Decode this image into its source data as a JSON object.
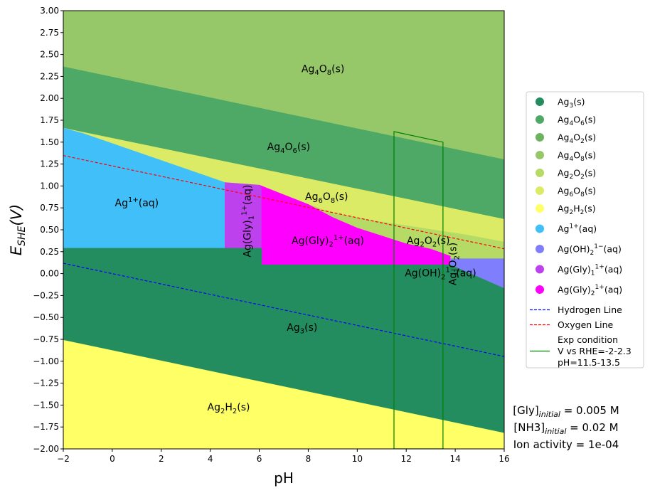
{
  "chart_data": {
    "type": "area",
    "xlabel": "pH",
    "ylabel": "E_SHE(V)",
    "xlim": [
      -2,
      16
    ],
    "ylim": [
      -2,
      3
    ],
    "xticks": [
      -2,
      0,
      2,
      4,
      6,
      8,
      10,
      12,
      14,
      16
    ],
    "yticks": [
      -2.0,
      -1.75,
      -1.5,
      -1.25,
      -1.0,
      -0.75,
      -0.5,
      -0.25,
      0.0,
      0.25,
      0.5,
      0.75,
      1.0,
      1.25,
      1.5,
      1.75,
      2.0,
      2.25,
      2.5,
      2.75,
      3.0
    ],
    "regions": [
      {
        "species": "Ag4O8(s)",
        "color": "#96c86a",
        "polygon": [
          [
            -2,
            3.0
          ],
          [
            16,
            3.0
          ],
          [
            16,
            1.3
          ],
          [
            -2,
            2.36
          ]
        ]
      },
      {
        "species": "Ag4O6(s)",
        "color": "#4ea966",
        "polygon": [
          [
            -2,
            2.36
          ],
          [
            16,
            1.3
          ],
          [
            16,
            0.62
          ],
          [
            -2,
            1.66
          ]
        ]
      },
      {
        "species": "Ag6O8(s)",
        "color": "#dbeb66",
        "polygon": [
          [
            -2,
            1.66
          ],
          [
            16,
            0.62
          ],
          [
            16,
            0.36
          ],
          [
            14.5,
            0.44
          ],
          [
            11.0,
            0.59
          ],
          [
            9.0,
            0.69
          ],
          [
            8.0,
            0.79
          ],
          [
            6.0,
            1.01
          ],
          [
            4.6,
            1.04
          ],
          [
            -1.2,
            1.6
          ]
        ]
      },
      {
        "species": "Ag2O2(s)",
        "color": "#b5db66",
        "polygon": [
          [
            8.0,
            0.79
          ],
          [
            9.0,
            0.69
          ],
          [
            11.0,
            0.59
          ],
          [
            14.5,
            0.44
          ],
          [
            16,
            0.36
          ],
          [
            16,
            0.17
          ],
          [
            13.8,
            0.17
          ],
          [
            13.8,
            0.2
          ],
          [
            13.0,
            0.28
          ],
          [
            12.0,
            0.34
          ],
          [
            10.0,
            0.52
          ],
          [
            9.0,
            0.64
          ]
        ]
      },
      {
        "species": "Ag1+(aq)",
        "color": "#40bff8",
        "polygon": [
          [
            -2,
            1.66
          ],
          [
            -1.2,
            1.6
          ],
          [
            4.6,
            1.04
          ],
          [
            4.6,
            0.29
          ],
          [
            -2,
            0.29
          ]
        ]
      },
      {
        "species": "Ag(Gly)1 1+(aq)",
        "color": "#be41ee",
        "polygon": [
          [
            4.6,
            1.04
          ],
          [
            6.0,
            1.01
          ],
          [
            6.1,
            0.98
          ],
          [
            6.1,
            0.1
          ],
          [
            6.1,
            0.29
          ],
          [
            4.6,
            0.29
          ]
        ]
      },
      {
        "species": "Ag(Gly)2 1+(aq)",
        "color": "#fe00fe",
        "polygon": [
          [
            6.1,
            0.98
          ],
          [
            6.0,
            1.01
          ],
          [
            8.0,
            0.79
          ],
          [
            9.0,
            0.64
          ],
          [
            10.0,
            0.52
          ],
          [
            12.0,
            0.34
          ],
          [
            13.0,
            0.28
          ],
          [
            13.8,
            0.2
          ],
          [
            13.8,
            0.1
          ],
          [
            6.1,
            0.1
          ]
        ]
      },
      {
        "species": "Ag(OH)2 1-(aq)",
        "color": "#7f7ffe",
        "polygon": [
          [
            13.8,
            0.17
          ],
          [
            16,
            0.17
          ],
          [
            16,
            -0.17
          ],
          [
            13.8,
            0.1
          ]
        ]
      },
      {
        "species": "Ag3(s)",
        "color": "#238d60",
        "polygon": [
          [
            -2,
            0.29
          ],
          [
            4.6,
            0.29
          ],
          [
            6.1,
            0.29
          ],
          [
            6.1,
            0.1
          ],
          [
            13.8,
            0.1
          ],
          [
            16,
            -0.17
          ],
          [
            16,
            -1.82
          ],
          [
            -2,
            -0.76
          ]
        ]
      },
      {
        "species": "Ag2H2(s)",
        "color": "#ffff66",
        "polygon": [
          [
            -2,
            -0.76
          ],
          [
            16,
            -1.82
          ],
          [
            16,
            -2.0
          ],
          [
            -2,
            -2.0
          ]
        ]
      }
    ],
    "region_labels": [
      {
        "text": "Ag4O8(s)",
        "x": 8.6,
        "y": 2.34
      },
      {
        "text": "Ag4O6(s)",
        "x": 7.2,
        "y": 1.45
      },
      {
        "text": "Ag6O8(s)",
        "x": 8.75,
        "y": 0.88
      },
      {
        "text": "Ag1+(aq)",
        "x": 1.0,
        "y": 0.81
      },
      {
        "text": "Ag(Gly)1 1+(aq)",
        "x": 5.5,
        "y": 0.6,
        "rotate": -90
      },
      {
        "text": "Ag(Gly)2 1+(aq)",
        "x": 8.8,
        "y": 0.38
      },
      {
        "text": "Ag2O2(s)",
        "x": 12.9,
        "y": 0.38
      },
      {
        "text": "Ag(OH)2 1-(aq)",
        "x": 13.4,
        "y": 0.01
      },
      {
        "text": "Ag1O2(s)",
        "x": 13.9,
        "y": 0.11,
        "rotate": -90
      },
      {
        "text": "Ag3(s)",
        "x": 7.75,
        "y": -0.61
      },
      {
        "text": "Ag2H2(s)",
        "x": 4.75,
        "y": -1.52
      }
    ],
    "lines": [
      {
        "name": "Hydrogen Line",
        "color": "#0000ff",
        "dash": true,
        "x": [
          -2,
          16
        ],
        "y": [
          0.118,
          -0.946
        ]
      },
      {
        "name": "Oxygen Line",
        "color": "#ff0000",
        "dash": true,
        "x": [
          -2,
          16
        ],
        "y": [
          1.347,
          0.283
        ]
      }
    ],
    "exp_box": {
      "name": "Exp condition V vs RHE=-2-2.3 pH=11.5-13.5",
      "color": "#008000",
      "polygon": [
        [
          11.5,
          1.62
        ],
        [
          13.5,
          1.5
        ],
        [
          13.5,
          -2.0
        ],
        [
          11.5,
          -2.0
        ]
      ]
    },
    "legend": [
      {
        "label": "Ag3(s)",
        "base": "Ag",
        "sub": "3",
        "rest": "(s)",
        "color": "#238d60",
        "kind": "dot"
      },
      {
        "label": "Ag4O6(s)",
        "base": "Ag",
        "sub": "4",
        "mid": "O",
        "sub2": "6",
        "rest": "(s)",
        "color": "#4ea966",
        "kind": "dot"
      },
      {
        "label": "Ag4O2(s)",
        "base": "Ag",
        "sub": "4",
        "mid": "O",
        "sub2": "2",
        "rest": "(s)",
        "color": "#6bb35e",
        "kind": "dot"
      },
      {
        "label": "Ag4O8(s)",
        "base": "Ag",
        "sub": "4",
        "mid": "O",
        "sub2": "8",
        "rest": "(s)",
        "color": "#96c86a",
        "kind": "dot"
      },
      {
        "label": "Ag2O2(s)",
        "base": "Ag",
        "sub": "2",
        "mid": "O",
        "sub2": "2",
        "rest": "(s)",
        "color": "#b5db66",
        "kind": "dot"
      },
      {
        "label": "Ag6O8(s)",
        "base": "Ag",
        "sub": "6",
        "mid": "O",
        "sub2": "8",
        "rest": "(s)",
        "color": "#dbeb66",
        "kind": "dot"
      },
      {
        "label": "Ag2H2(s)",
        "base": "Ag",
        "sub": "2",
        "mid": "H",
        "sub2": "2",
        "rest": "(s)",
        "color": "#ffff66",
        "kind": "dot"
      },
      {
        "label": "Ag1+(aq)",
        "base": "Ag",
        "sup": "1+",
        "rest": "(aq)",
        "color": "#40bff8",
        "kind": "dot"
      },
      {
        "label": "Ag(OH)2 1-(aq)",
        "base": "Ag(OH)",
        "sub": "2",
        "sup": "1−",
        "rest": "(aq)",
        "color": "#7f7ffe",
        "kind": "dot"
      },
      {
        "label": "Ag(Gly)1 1+(aq)",
        "base": "Ag(Gly)",
        "sub": "1",
        "sup": "1+",
        "rest": "(aq)",
        "color": "#be41ee",
        "kind": "dot"
      },
      {
        "label": "Ag(Gly)2 1+(aq)",
        "base": "Ag(Gly)",
        "sub": "2",
        "sup": "1+",
        "rest": "(aq)",
        "color": "#fe00fe",
        "kind": "dot"
      },
      {
        "label": "Hydrogen Line",
        "color": "#0000ff",
        "kind": "dash"
      },
      {
        "label": "Oxygen Line",
        "color": "#ff0000",
        "kind": "dash"
      },
      {
        "label": "Exp condition",
        "line2": "V vs RHE=-2-2.3",
        "line3": "pH=11.5-13.5",
        "color": "#008000",
        "kind": "solid"
      }
    ]
  },
  "notes": {
    "gly_name": "[Gly]",
    "gly_sub": "initial",
    "gly_value": " = 0.005 M",
    "nh3_name": "[NH3]",
    "nh3_sub": "initial",
    "nh3_value": " = 0.02 M",
    "ion_activity": "Ion activity = 1e-04"
  }
}
